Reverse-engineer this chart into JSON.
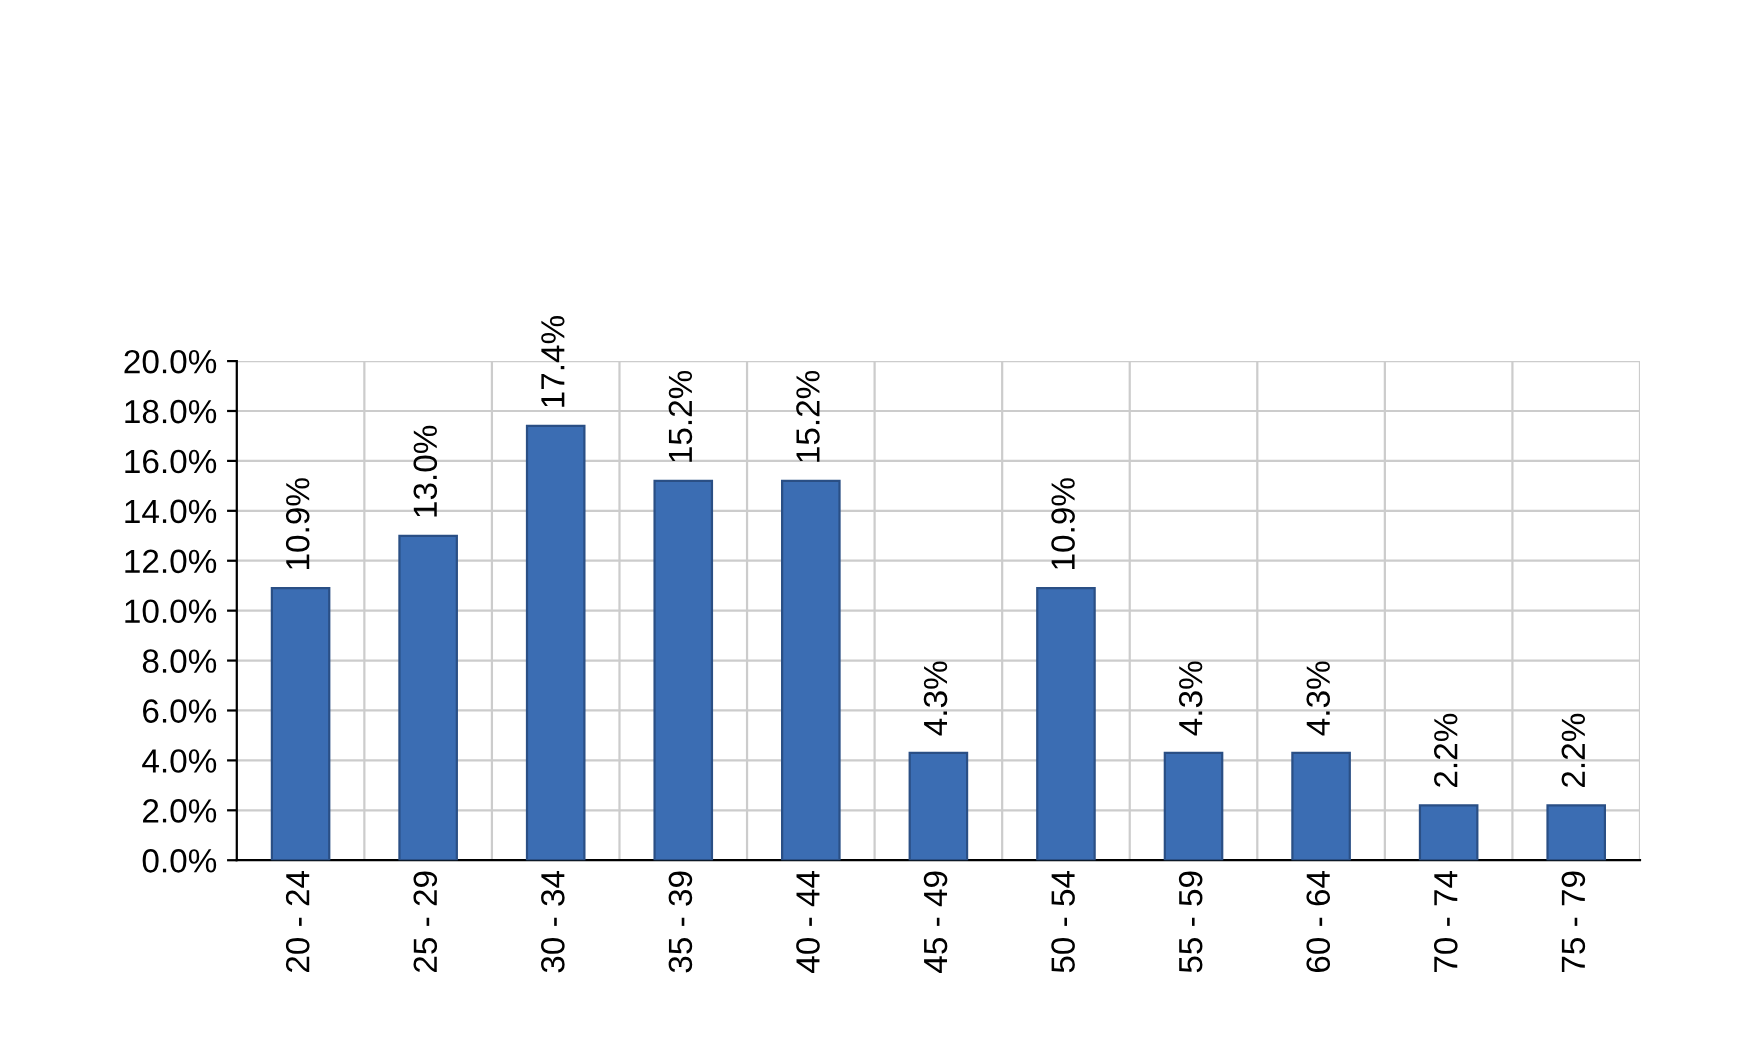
{
  "chart_data": {
    "type": "bar",
    "categories": [
      "20 - 24",
      "25 - 29",
      "30 - 34",
      "35 - 39",
      "40 - 44",
      "45 - 49",
      "50 - 54",
      "55 - 59",
      "60 - 64",
      "70 - 74",
      "75 - 79"
    ],
    "values": [
      10.9,
      13.0,
      17.4,
      15.2,
      15.2,
      4.3,
      10.9,
      4.3,
      4.3,
      2.2,
      2.2
    ],
    "value_labels": [
      "10.9%",
      "13.0%",
      "17.4%",
      "15.2%",
      "15.2%",
      "4.3%",
      "10.9%",
      "4.3%",
      "4.3%",
      "2.2%",
      "2.2%"
    ],
    "color": "#3b6db3",
    "ylim": [
      0,
      20
    ],
    "yticks": [
      {
        "value": 0,
        "label": "0.0%"
      },
      {
        "value": 2,
        "label": "2.0%"
      },
      {
        "value": 4,
        "label": "4.0%"
      },
      {
        "value": 6,
        "label": "6.0%"
      },
      {
        "value": 8,
        "label": "8.0%"
      },
      {
        "value": 10,
        "label": "10.0%"
      },
      {
        "value": 12,
        "label": "12.0%"
      },
      {
        "value": 14,
        "label": "14.0%"
      },
      {
        "value": 16,
        "label": "16.0%"
      },
      {
        "value": 18,
        "label": "18.0%"
      },
      {
        "value": 20,
        "label": "20.0%"
      }
    ],
    "grid": true,
    "legend": false
  }
}
